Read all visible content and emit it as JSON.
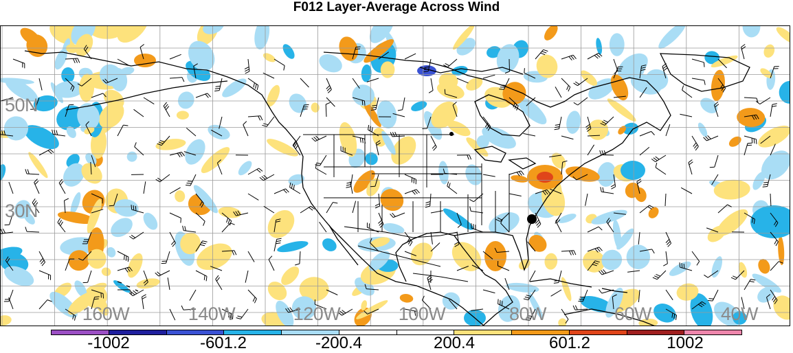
{
  "title": "F012 Layer-Average Across Wind",
  "map": {
    "lat_labels": [
      "50N",
      "30N"
    ],
    "lon_labels": [
      "160W",
      "140W",
      "120W",
      "100W",
      "80W",
      "60W",
      "40W"
    ],
    "basemap_color": "#000000",
    "grid_color": "#9a9a9a"
  },
  "colorbar": {
    "colors": [
      "#9b4fc4",
      "#1f1f9e",
      "#3a52d4",
      "#27b3e8",
      "#a9ddf5",
      "#ffffff",
      "#ffffff",
      "#fde27c",
      "#f39a1a",
      "#e0451a",
      "#a01f1f",
      "#ee86ac"
    ],
    "tick_labels": [
      "-1002",
      "-601.2",
      "-200.4",
      "200.4",
      "601.2",
      "1002"
    ]
  }
}
